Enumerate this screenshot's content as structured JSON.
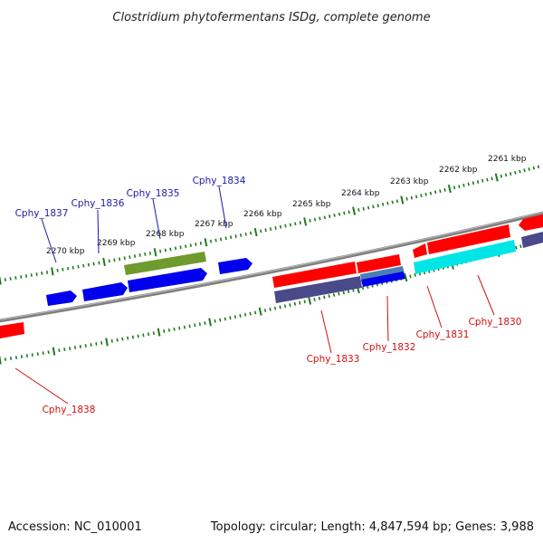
{
  "title": "Clostridium phytofermentans ISDg, complete genome",
  "footer": {
    "accession": "Accession: NC_010001",
    "summary": "Topology: circular; Length: 4,847,594 bp; Genes: 3,988"
  },
  "colors": {
    "backbone": "#7f7f7f",
    "tick": "#1f7a1f",
    "forward_label": "#1a1aa8",
    "reverse_label": "#d01010",
    "gene_red": "#ff0000",
    "gene_blue": "#0000ee",
    "gene_navy": "#4a4a8a",
    "gene_olive": "#6e9a2e",
    "gene_cyan": "#00e5e5",
    "gene_steel": "#4a7fb5"
  },
  "scale_labels": [
    "2261 kbp",
    "2262 kbp",
    "2263 kbp",
    "2264 kbp",
    "2265 kbp",
    "2266 kbp",
    "2267 kbp",
    "2268 kbp",
    "2269 kbp",
    "2270 kbp"
  ],
  "gene_labels_forward": [
    "Cphy_1834",
    "Cphy_1835",
    "Cphy_1836",
    "Cphy_1837"
  ],
  "gene_labels_reverse": [
    "Cphy_1830",
    "Cphy_1831",
    "Cphy_1832",
    "Cphy_1833",
    "Cphy_1838"
  ]
}
